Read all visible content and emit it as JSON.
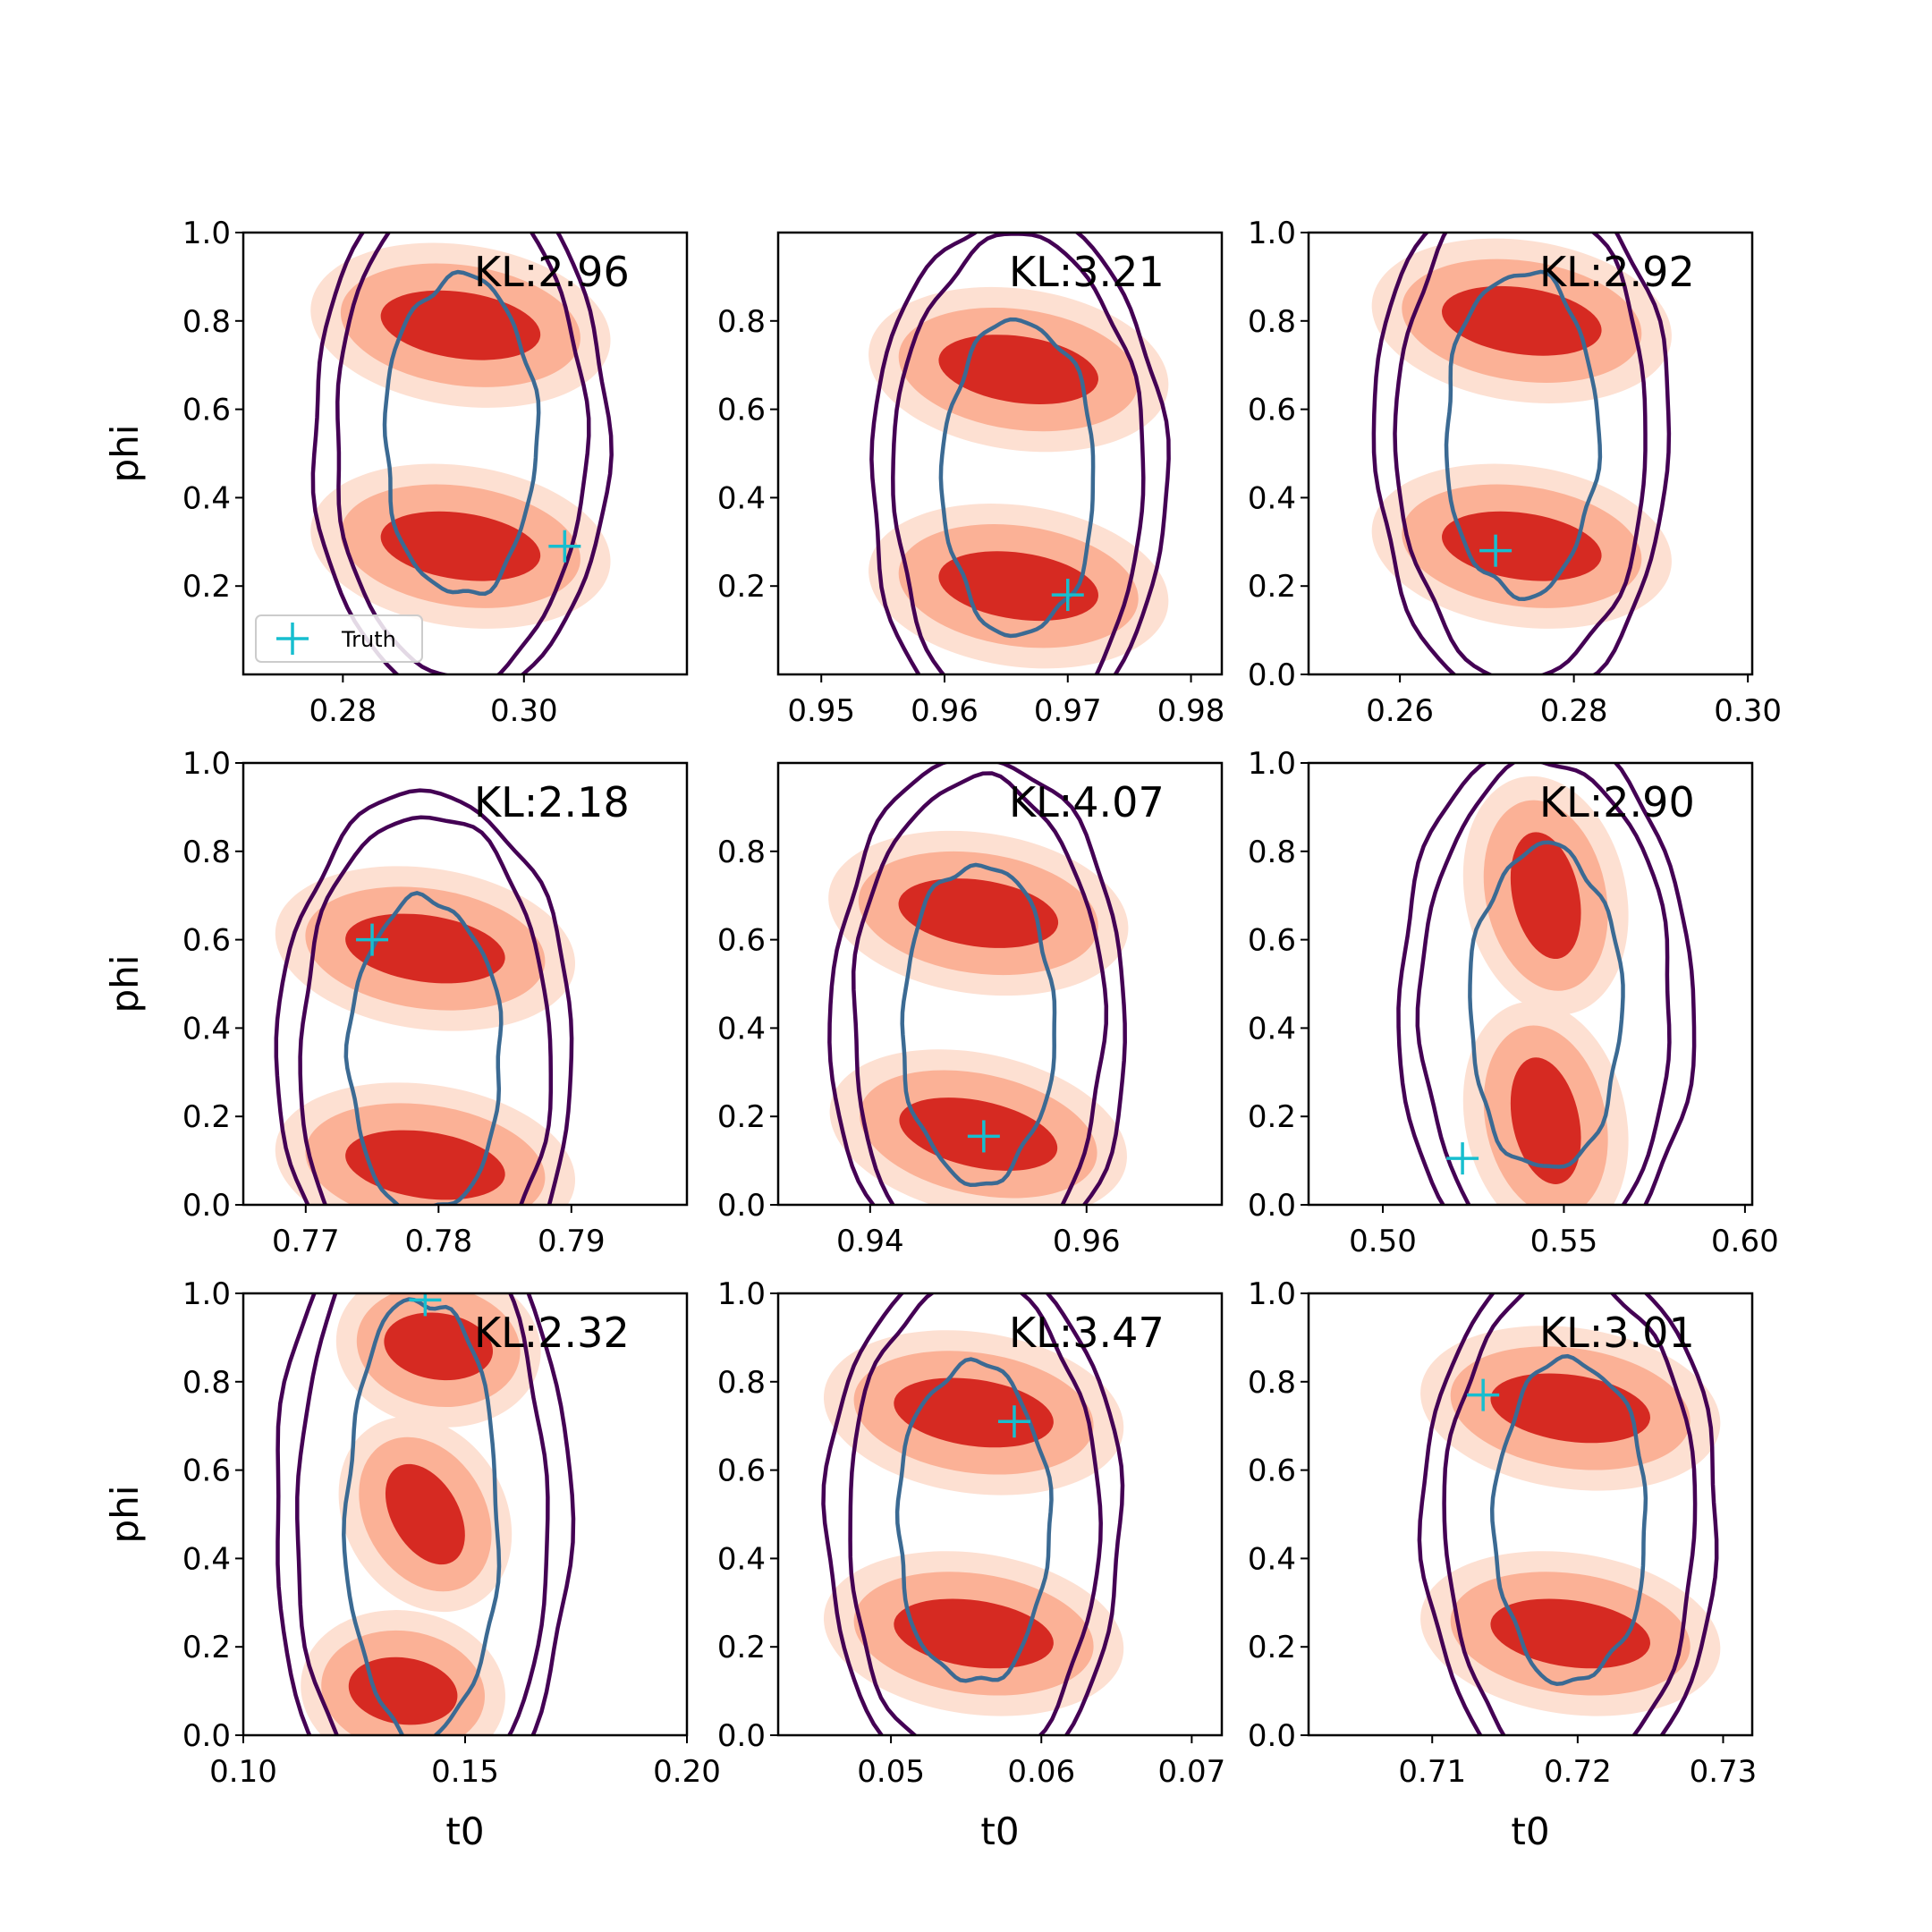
{
  "colors": {
    "outer_contour": "#440154",
    "inner_contour": "#3b6a93",
    "density_light": "#fde0d2",
    "density_mid": "#fbb196",
    "density_dark": "#d62a22",
    "truth_marker": "#17becf"
  },
  "legend": {
    "label": "Truth",
    "marker": "plus"
  },
  "chart_data": [
    {
      "type": "contour",
      "panel": "row1-col1",
      "xlabel": "",
      "ylabel": "phi",
      "xlim": [
        0.269,
        0.318
      ],
      "ylim": [
        0.0,
        1.0
      ],
      "xticks": [
        "0.28",
        "0.30"
      ],
      "xtick_values": [
        0.28,
        0.3
      ],
      "yticks": [
        "0.2",
        "0.4",
        "0.6",
        "0.8",
        "1.0"
      ],
      "ytick_values": [
        0.2,
        0.4,
        0.6,
        0.8,
        1.0
      ],
      "annotation": "KL:2.96",
      "truth": {
        "t0": 0.3045,
        "phi": 0.29
      },
      "modes": [
        {
          "t0": 0.293,
          "phi": 0.79
        },
        {
          "t0": 0.293,
          "phi": 0.29
        }
      ],
      "show_legend": true
    },
    {
      "type": "contour",
      "panel": "row1-col2",
      "xlabel": "",
      "ylabel": "",
      "xlim": [
        0.9465,
        0.9825
      ],
      "ylim": [
        0.0,
        1.0
      ],
      "xticks": [
        "0.95",
        "0.96",
        "0.97",
        "0.98"
      ],
      "xtick_values": [
        0.95,
        0.96,
        0.97,
        0.98
      ],
      "yticks": [
        "0.2",
        "0.4",
        "0.6",
        "0.8"
      ],
      "ytick_values": [
        0.2,
        0.4,
        0.6,
        0.8
      ],
      "annotation": "KL:3.21",
      "truth": {
        "t0": 0.97,
        "phi": 0.18
      },
      "modes": [
        {
          "t0": 0.966,
          "phi": 0.69
        },
        {
          "t0": 0.966,
          "phi": 0.2
        }
      ],
      "show_legend": false
    },
    {
      "type": "contour",
      "panel": "row1-col3",
      "xlabel": "",
      "ylabel": "",
      "xlim": [
        0.2495,
        0.3005
      ],
      "ylim": [
        0.0,
        1.0
      ],
      "xticks": [
        "0.26",
        "0.28",
        "0.30"
      ],
      "xtick_values": [
        0.26,
        0.28,
        0.3
      ],
      "yticks": [
        "0.0",
        "0.2",
        "0.4",
        "0.6",
        "0.8",
        "1.0"
      ],
      "ytick_values": [
        0.0,
        0.2,
        0.4,
        0.6,
        0.8,
        1.0
      ],
      "annotation": "KL:2.92",
      "truth": {
        "t0": 0.271,
        "phi": 0.28
      },
      "modes": [
        {
          "t0": 0.274,
          "phi": 0.8
        },
        {
          "t0": 0.274,
          "phi": 0.29
        }
      ],
      "show_legend": false
    },
    {
      "type": "contour",
      "panel": "row2-col1",
      "xlabel": "",
      "ylabel": "phi",
      "xlim": [
        0.7653,
        0.7987
      ],
      "ylim": [
        0.0,
        1.0
      ],
      "xticks": [
        "0.77",
        "0.78",
        "0.79"
      ],
      "xtick_values": [
        0.77,
        0.78,
        0.79
      ],
      "yticks": [
        "0.0",
        "0.2",
        "0.4",
        "0.6",
        "0.8",
        "1.0"
      ],
      "ytick_values": [
        0.0,
        0.2,
        0.4,
        0.6,
        0.8,
        1.0
      ],
      "annotation": "KL:2.18",
      "truth": {
        "t0": 0.775,
        "phi": 0.6
      },
      "modes": [
        {
          "t0": 0.779,
          "phi": 0.58
        },
        {
          "t0": 0.779,
          "phi": 0.09
        }
      ],
      "show_legend": false
    },
    {
      "type": "contour",
      "panel": "row2-col2",
      "xlabel": "",
      "ylabel": "",
      "xlim": [
        0.9315,
        0.9725
      ],
      "ylim": [
        0.0,
        1.0
      ],
      "xticks": [
        "0.94",
        "0.96"
      ],
      "xtick_values": [
        0.94,
        0.96
      ],
      "yticks": [
        "0.0",
        "0.2",
        "0.4",
        "0.6",
        "0.8"
      ],
      "ytick_values": [
        0.0,
        0.2,
        0.4,
        0.6,
        0.8
      ],
      "annotation": "KL:4.07",
      "truth": {
        "t0": 0.9505,
        "phi": 0.155
      },
      "modes": [
        {
          "t0": 0.95,
          "phi": 0.66
        },
        {
          "t0": 0.95,
          "phi": 0.16
        }
      ],
      "show_legend": false
    },
    {
      "type": "contour",
      "panel": "row2-col3",
      "xlabel": "",
      "ylabel": "",
      "xlim": [
        0.4795,
        0.602
      ],
      "ylim": [
        0.0,
        1.0
      ],
      "xticks": [
        "0.50",
        "0.55",
        "0.60"
      ],
      "xtick_values": [
        0.5,
        0.55,
        0.6
      ],
      "yticks": [
        "0.0",
        "0.2",
        "0.4",
        "0.6",
        "0.8",
        "1.0"
      ],
      "ytick_values": [
        0.0,
        0.2,
        0.4,
        0.6,
        0.8,
        1.0
      ],
      "annotation": "KL:2.90",
      "truth": {
        "t0": 0.522,
        "phi": 0.105
      },
      "modes": [
        {
          "t0": 0.545,
          "phi": 0.7
        },
        {
          "t0": 0.545,
          "phi": 0.19
        }
      ],
      "show_legend": false
    },
    {
      "type": "contour",
      "panel": "row3-col1",
      "xlabel": "t0",
      "ylabel": "phi",
      "xlim": [
        0.1,
        0.2
      ],
      "ylim": [
        0.0,
        1.0
      ],
      "xticks": [
        "0.10",
        "0.15",
        "0.20"
      ],
      "xtick_values": [
        0.1,
        0.15,
        0.2
      ],
      "yticks": [
        "0.0",
        "0.2",
        "0.4",
        "0.6",
        "0.8",
        "1.0"
      ],
      "ytick_values": [
        0.0,
        0.2,
        0.4,
        0.6,
        0.8,
        1.0
      ],
      "annotation": "KL:2.32",
      "truth": {
        "t0": 0.141,
        "phi": 0.985
      },
      "modes": [
        {
          "t0": 0.144,
          "phi": 0.88
        },
        {
          "t0": 0.141,
          "phi": 0.5
        },
        {
          "t0": 0.136,
          "phi": 0.1
        }
      ],
      "show_legend": false
    },
    {
      "type": "contour",
      "panel": "row3-col2",
      "xlabel": "t0",
      "ylabel": "",
      "xlim": [
        0.0425,
        0.072
      ],
      "ylim": [
        0.0,
        1.0
      ],
      "xticks": [
        "0.05",
        "0.06",
        "0.07"
      ],
      "xtick_values": [
        0.05,
        0.06,
        0.07
      ],
      "yticks": [
        "0.0",
        "0.2",
        "0.4",
        "0.6",
        "0.8",
        "1.0"
      ],
      "ytick_values": [
        0.0,
        0.2,
        0.4,
        0.6,
        0.8,
        1.0
      ],
      "annotation": "KL:3.47",
      "truth": {
        "t0": 0.0582,
        "phi": 0.71
      },
      "modes": [
        {
          "t0": 0.0555,
          "phi": 0.73
        },
        {
          "t0": 0.0555,
          "phi": 0.23
        }
      ],
      "show_legend": false
    },
    {
      "type": "contour",
      "panel": "row3-col3",
      "xlabel": "t0",
      "ylabel": "",
      "xlim": [
        0.7015,
        0.732
      ],
      "ylim": [
        0.0,
        1.0
      ],
      "xticks": [
        "0.71",
        "0.72",
        "0.73"
      ],
      "xtick_values": [
        0.71,
        0.72,
        0.73
      ],
      "yticks": [
        "0.0",
        "0.2",
        "0.4",
        "0.6",
        "0.8",
        "1.0"
      ],
      "ytick_values": [
        0.0,
        0.2,
        0.4,
        0.6,
        0.8,
        1.0
      ],
      "annotation": "KL:3.01",
      "truth": {
        "t0": 0.7135,
        "phi": 0.77
      },
      "modes": [
        {
          "t0": 0.7195,
          "phi": 0.74
        },
        {
          "t0": 0.7195,
          "phi": 0.23
        }
      ],
      "show_legend": false
    }
  ]
}
